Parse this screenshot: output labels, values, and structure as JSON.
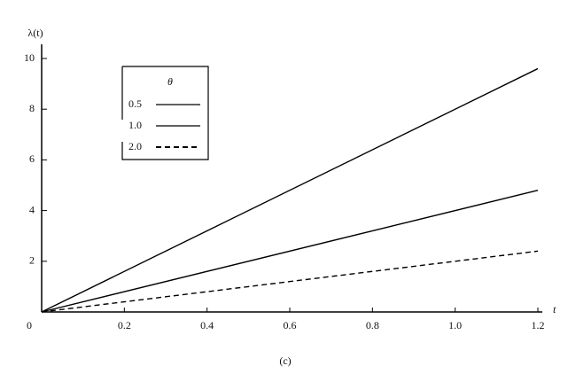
{
  "chart_data": {
    "type": "line",
    "y_label": "λ(t)",
    "x_label": "t",
    "caption": "(c)",
    "legend_title": "θ",
    "x": [
      0,
      1.2
    ],
    "series": [
      {
        "name": "0.5",
        "color": "#000000",
        "dash": "solid",
        "values": [
          0,
          9.6
        ]
      },
      {
        "name": "1.0",
        "color": "#000000",
        "dash": "solid",
        "values": [
          0,
          4.8
        ]
      },
      {
        "name": "2.0",
        "color": "#000000",
        "dash": "dashed",
        "values": [
          0,
          2.4
        ]
      }
    ],
    "xlim": [
      0,
      1.2
    ],
    "xticks": [
      {
        "value": 0,
        "label": "0"
      },
      0.2,
      0.4,
      0.6,
      0.8,
      {
        "value": 1,
        "label": "1.0"
      },
      1.2
    ],
    "ylim": [
      0,
      10
    ],
    "yticks": [
      2,
      4,
      6,
      8,
      10
    ],
    "grid": false
  }
}
